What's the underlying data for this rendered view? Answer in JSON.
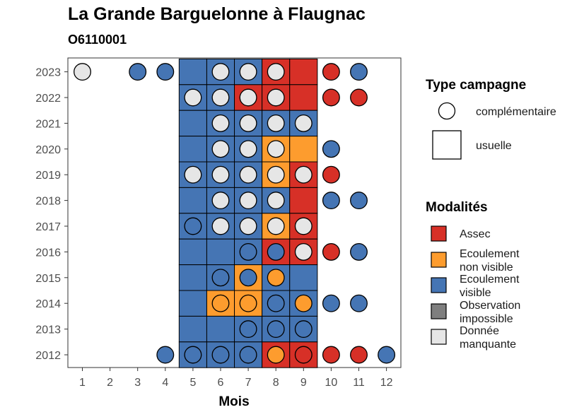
{
  "title": "La Grande Barguelonne à Flaugnac",
  "subtitle": "O6110001",
  "chart_data": {
    "type": "heatmap",
    "xlabel": "Mois",
    "x_ticks": [
      "1",
      "2",
      "3",
      "4",
      "5",
      "6",
      "7",
      "8",
      "9",
      "10",
      "11",
      "12"
    ],
    "y_ticks": [
      "2012",
      "2013",
      "2014",
      "2015",
      "2016",
      "2017",
      "2018",
      "2019",
      "2020",
      "2021",
      "2022",
      "2023"
    ],
    "grid": false,
    "legend_placement": "right",
    "legends": {
      "type_campagne": {
        "title": "Type campagne",
        "entries": [
          {
            "key": "complementaire",
            "label": "complémentaire",
            "shape": "circle"
          },
          {
            "key": "usuelle",
            "label": "usuelle",
            "shape": "square"
          }
        ]
      },
      "modalites": {
        "title": "Modalités",
        "entries": [
          {
            "key": "assec",
            "label": [
              "Assec"
            ],
            "color": "#d73027"
          },
          {
            "key": "nonvis",
            "label": [
              "Ecoulement",
              "non visible"
            ],
            "color": "#fd9c2e"
          },
          {
            "key": "vis",
            "label": [
              "Ecoulement",
              "visible"
            ],
            "color": "#4575b4"
          },
          {
            "key": "impossible",
            "label": [
              "Observation",
              "impossible"
            ],
            "color": "#7f7f7f"
          },
          {
            "key": "missing",
            "label": [
              "Donnée",
              "manquante"
            ],
            "color": "#e6e6e6"
          }
        ]
      }
    },
    "usuelle": [
      {
        "year": 2023,
        "months": [
          "vis",
          "vis",
          "vis",
          "assec",
          "assec"
        ]
      },
      {
        "year": 2022,
        "months": [
          "vis",
          "vis",
          "assec",
          "assec",
          "assec"
        ]
      },
      {
        "year": 2021,
        "months": [
          "vis",
          "vis",
          "vis",
          "vis",
          "vis"
        ]
      },
      {
        "year": 2020,
        "months": [
          "vis",
          "vis",
          "vis",
          "nonvis",
          "nonvis"
        ]
      },
      {
        "year": 2019,
        "months": [
          "vis",
          "vis",
          "vis",
          "nonvis",
          "assec"
        ]
      },
      {
        "year": 2018,
        "months": [
          "vis",
          "vis",
          "vis",
          "vis",
          "assec"
        ]
      },
      {
        "year": 2017,
        "months": [
          "vis",
          "vis",
          "vis",
          "nonvis",
          "assec"
        ]
      },
      {
        "year": 2016,
        "months": [
          "vis",
          "vis",
          "vis",
          "assec",
          "assec"
        ]
      },
      {
        "year": 2015,
        "months": [
          "vis",
          "vis",
          "nonvis",
          "vis",
          "vis"
        ]
      },
      {
        "year": 2014,
        "months": [
          "vis",
          "nonvis",
          "nonvis",
          "vis",
          "vis"
        ]
      },
      {
        "year": 2013,
        "months": [
          "vis",
          "vis",
          "vis",
          "vis",
          "vis"
        ]
      },
      {
        "year": 2012,
        "months": [
          "vis",
          "vis",
          "vis",
          "assec",
          "assec"
        ]
      }
    ],
    "usuelle_months": [
      5,
      6,
      7,
      8,
      9
    ],
    "complementaire": [
      {
        "year": 2023,
        "month": 1,
        "v": "missing"
      },
      {
        "year": 2023,
        "month": 3,
        "v": "vis"
      },
      {
        "year": 2023,
        "month": 4,
        "v": "vis"
      },
      {
        "year": 2023,
        "month": 6,
        "v": "missing"
      },
      {
        "year": 2023,
        "month": 7,
        "v": "missing"
      },
      {
        "year": 2023,
        "month": 8,
        "v": "missing"
      },
      {
        "year": 2023,
        "month": 10,
        "v": "assec"
      },
      {
        "year": 2023,
        "month": 11,
        "v": "vis"
      },
      {
        "year": 2022,
        "month": 5,
        "v": "missing"
      },
      {
        "year": 2022,
        "month": 6,
        "v": "missing"
      },
      {
        "year": 2022,
        "month": 7,
        "v": "missing"
      },
      {
        "year": 2022,
        "month": 8,
        "v": "missing"
      },
      {
        "year": 2022,
        "month": 10,
        "v": "assec"
      },
      {
        "year": 2022,
        "month": 11,
        "v": "assec"
      },
      {
        "year": 2021,
        "month": 6,
        "v": "missing"
      },
      {
        "year": 2021,
        "month": 7,
        "v": "missing"
      },
      {
        "year": 2021,
        "month": 8,
        "v": "missing"
      },
      {
        "year": 2021,
        "month": 9,
        "v": "missing"
      },
      {
        "year": 2020,
        "month": 6,
        "v": "missing"
      },
      {
        "year": 2020,
        "month": 7,
        "v": "missing"
      },
      {
        "year": 2020,
        "month": 8,
        "v": "missing"
      },
      {
        "year": 2020,
        "month": 10,
        "v": "vis"
      },
      {
        "year": 2019,
        "month": 5,
        "v": "missing"
      },
      {
        "year": 2019,
        "month": 6,
        "v": "missing"
      },
      {
        "year": 2019,
        "month": 7,
        "v": "missing"
      },
      {
        "year": 2019,
        "month": 8,
        "v": "missing"
      },
      {
        "year": 2019,
        "month": 9,
        "v": "missing"
      },
      {
        "year": 2019,
        "month": 10,
        "v": "assec"
      },
      {
        "year": 2018,
        "month": 6,
        "v": "missing"
      },
      {
        "year": 2018,
        "month": 7,
        "v": "missing"
      },
      {
        "year": 2018,
        "month": 8,
        "v": "missing"
      },
      {
        "year": 2018,
        "month": 10,
        "v": "vis"
      },
      {
        "year": 2018,
        "month": 11,
        "v": "vis"
      },
      {
        "year": 2017,
        "month": 5,
        "v": "vis"
      },
      {
        "year": 2017,
        "month": 6,
        "v": "missing"
      },
      {
        "year": 2017,
        "month": 7,
        "v": "missing"
      },
      {
        "year": 2017,
        "month": 8,
        "v": "missing"
      },
      {
        "year": 2017,
        "month": 9,
        "v": "missing"
      },
      {
        "year": 2016,
        "month": 7,
        "v": "vis"
      },
      {
        "year": 2016,
        "month": 8,
        "v": "vis"
      },
      {
        "year": 2016,
        "month": 9,
        "v": "missing"
      },
      {
        "year": 2016,
        "month": 10,
        "v": "assec"
      },
      {
        "year": 2016,
        "month": 11,
        "v": "vis"
      },
      {
        "year": 2015,
        "month": 6,
        "v": "vis"
      },
      {
        "year": 2015,
        "month": 7,
        "v": "vis"
      },
      {
        "year": 2015,
        "month": 8,
        "v": "nonvis"
      },
      {
        "year": 2014,
        "month": 6,
        "v": "nonvis"
      },
      {
        "year": 2014,
        "month": 7,
        "v": "nonvis"
      },
      {
        "year": 2014,
        "month": 8,
        "v": "vis"
      },
      {
        "year": 2014,
        "month": 9,
        "v": "nonvis"
      },
      {
        "year": 2014,
        "month": 10,
        "v": "vis"
      },
      {
        "year": 2014,
        "month": 11,
        "v": "vis"
      },
      {
        "year": 2013,
        "month": 7,
        "v": "vis"
      },
      {
        "year": 2013,
        "month": 8,
        "v": "vis"
      },
      {
        "year": 2013,
        "month": 9,
        "v": "vis"
      },
      {
        "year": 2012,
        "month": 4,
        "v": "vis"
      },
      {
        "year": 2012,
        "month": 5,
        "v": "vis"
      },
      {
        "year": 2012,
        "month": 6,
        "v": "vis"
      },
      {
        "year": 2012,
        "month": 7,
        "v": "vis"
      },
      {
        "year": 2012,
        "month": 8,
        "v": "nonvis"
      },
      {
        "year": 2012,
        "month": 9,
        "v": "assec"
      },
      {
        "year": 2012,
        "month": 10,
        "v": "assec"
      },
      {
        "year": 2012,
        "month": 11,
        "v": "assec"
      },
      {
        "year": 2012,
        "month": 12,
        "v": "vis"
      }
    ]
  }
}
